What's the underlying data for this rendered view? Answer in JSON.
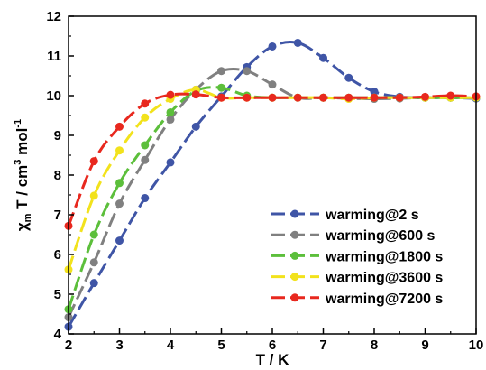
{
  "chart_data": {
    "type": "line",
    "xlabel": "T / K",
    "ylabel_parts": {
      "chi": "χ",
      "sub_m": "m",
      "mid": " T / cm",
      "sup_3": "3",
      "mol": " mol",
      "sup_neg1": "-1"
    },
    "xlim": [
      2,
      10
    ],
    "ylim": [
      4,
      12
    ],
    "xticks": [
      2,
      3,
      4,
      5,
      6,
      7,
      8,
      9,
      10
    ],
    "yticks": [
      4,
      5,
      6,
      7,
      8,
      9,
      10,
      11,
      12
    ],
    "legend_position": "bottom-right",
    "grid": false,
    "x": [
      2,
      2.5,
      3,
      3.5,
      4,
      4.5,
      5,
      5.5,
      6,
      6.5,
      7,
      7.5,
      8,
      8.5,
      9,
      9.5,
      10
    ],
    "series": [
      {
        "name": "warming@2 s",
        "color": "#3f55a6",
        "values": [
          4.18,
          5.28,
          6.35,
          7.42,
          8.32,
          9.22,
          9.98,
          10.72,
          11.24,
          11.33,
          10.95,
          10.45,
          10.1,
          9.97,
          9.95,
          9.95,
          9.93
        ]
      },
      {
        "name": "warming@600 s",
        "color": "#808080",
        "values": [
          4.42,
          5.8,
          7.28,
          8.38,
          9.4,
          10.15,
          10.62,
          10.62,
          10.28,
          9.95,
          9.95,
          9.93,
          9.92,
          9.93,
          9.95,
          9.95,
          9.95
        ]
      },
      {
        "name": "warming@1800 s",
        "color": "#5cbf3b",
        "values": [
          4.62,
          6.5,
          7.8,
          8.75,
          9.58,
          10.12,
          10.2,
          10.0,
          9.95,
          9.95,
          9.95,
          9.95,
          9.95,
          9.95,
          9.95,
          9.95,
          9.95
        ]
      },
      {
        "name": "warming@3600 s",
        "color": "#f2e21c",
        "values": [
          5.62,
          7.48,
          8.62,
          9.45,
          9.92,
          10.15,
          9.95,
          9.95,
          9.95,
          9.95,
          9.95,
          9.92,
          9.95,
          9.95,
          9.95,
          9.95,
          9.95
        ]
      },
      {
        "name": "warming@7200 s",
        "color": "#e8281e",
        "values": [
          6.72,
          8.35,
          9.22,
          9.8,
          10.02,
          10.03,
          9.95,
          9.95,
          9.95,
          9.95,
          9.95,
          9.95,
          9.95,
          9.95,
          9.97,
          10.0,
          9.98
        ]
      }
    ]
  }
}
